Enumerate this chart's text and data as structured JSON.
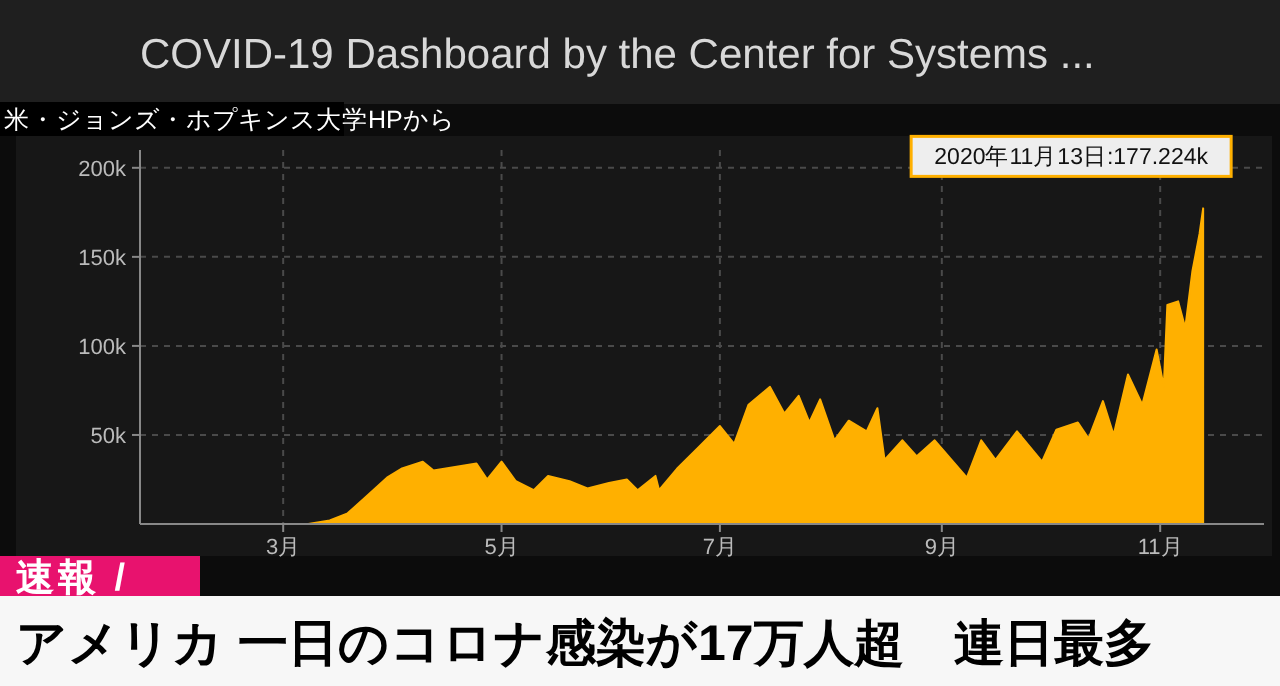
{
  "chart_data": {
    "type": "area",
    "title": "COVID-19 Dashboard by the Center for Systems ...",
    "x": [
      "2020-01-22",
      "2020-03-01",
      "2020-03-08",
      "2020-03-14",
      "2020-03-19",
      "2020-03-24",
      "2020-03-30",
      "2020-04-03",
      "2020-04-09",
      "2020-04-12",
      "2020-04-18",
      "2020-04-24",
      "2020-04-27",
      "2020-05-01",
      "2020-05-05",
      "2020-05-10",
      "2020-05-14",
      "2020-05-20",
      "2020-05-25",
      "2020-05-31",
      "2020-06-05",
      "2020-06-08",
      "2020-06-13",
      "2020-06-14",
      "2020-06-19",
      "2020-06-25",
      "2020-07-01",
      "2020-07-05",
      "2020-07-09",
      "2020-07-15",
      "2020-07-19",
      "2020-07-23",
      "2020-07-26",
      "2020-07-29",
      "2020-08-02",
      "2020-08-06",
      "2020-08-11",
      "2020-08-14",
      "2020-08-16",
      "2020-08-21",
      "2020-08-25",
      "2020-08-30",
      "2020-09-08",
      "2020-09-12",
      "2020-09-16",
      "2020-09-22",
      "2020-09-29",
      "2020-10-03",
      "2020-10-09",
      "2020-10-12",
      "2020-10-16",
      "2020-10-19",
      "2020-10-23",
      "2020-10-27",
      "2020-10-31",
      "2020-11-02",
      "2020-11-03",
      "2020-11-06",
      "2020-11-08",
      "2020-11-10",
      "2020-11-12",
      "2020-11-13"
    ],
    "values": [
      0,
      0,
      0,
      2000,
      6000,
      15000,
      26000,
      31000,
      35000,
      30000,
      32000,
      34000,
      25000,
      35000,
      24000,
      19000,
      27000,
      24000,
      20000,
      23000,
      25000,
      19000,
      27000,
      19000,
      31000,
      43000,
      55000,
      45000,
      67000,
      77000,
      62000,
      72000,
      57000,
      70000,
      47000,
      58000,
      52000,
      65000,
      36000,
      47000,
      38000,
      47000,
      26000,
      47000,
      36000,
      52000,
      35000,
      53000,
      57000,
      48000,
      69000,
      50000,
      84000,
      67000,
      98000,
      77000,
      123000,
      125000,
      110000,
      142000,
      163000,
      177224
    ],
    "color": "#ffb000",
    "xlim": [
      "2020-01-21",
      "2020-11-30"
    ],
    "xticks": [
      {
        "value": "2020-03-01",
        "label": "3月"
      },
      {
        "value": "2020-05-01",
        "label": "5月"
      },
      {
        "value": "2020-07-01",
        "label": "7月"
      },
      {
        "value": "2020-09-01",
        "label": "9月"
      },
      {
        "value": "2020-11-01",
        "label": "11月"
      }
    ],
    "ylim": [
      0,
      210000
    ],
    "yticks": [
      {
        "value": 50000,
        "label": "50k"
      },
      {
        "value": 100000,
        "label": "100k"
      },
      {
        "value": 150000,
        "label": "150k"
      },
      {
        "value": 200000,
        "label": "200k"
      }
    ],
    "grid": true,
    "annotations": [
      {
        "text": "2020年11月13日:177.224k",
        "x": "2020-11-13",
        "y": 177224
      },
      "米・ジョンズ・ホプキンス大学HPから",
      "速報 /",
      "アメリカ 一日のコロナ感染が17万人超　連日最多"
    ]
  }
}
